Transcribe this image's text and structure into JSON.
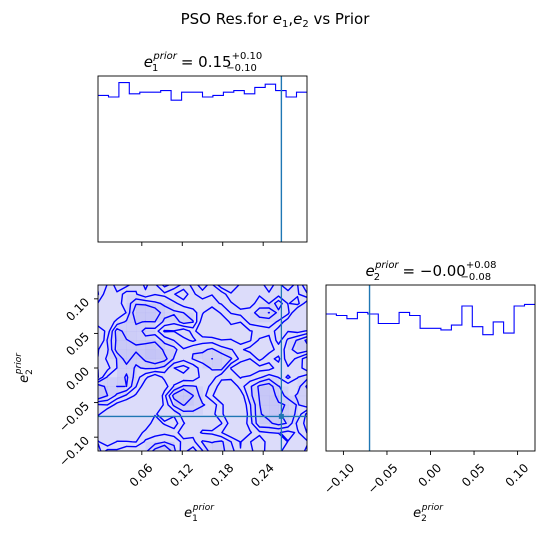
{
  "chart_data": {
    "type": "corner",
    "suptitle": "PSO Res.for e1,e2 vs Prior",
    "suptitle_parts": {
      "prefix": "PSO Res.for ",
      "sym": "e",
      "sub1": "1",
      "comma": ",",
      "sub2": "2",
      "suffix": " vs Prior"
    },
    "panels": [
      {
        "type": "histogram",
        "variable": "e1_prior",
        "title": {
          "sym": "e",
          "sub": "1",
          "sup": "prior",
          "median": "= 0.15",
          "plus": "+0.10",
          "minus": "−0.10"
        },
        "xlim": [
          -0.005,
          0.305
        ],
        "bin_edges": [
          -0.005,
          0.0105,
          0.026,
          0.0415,
          0.057,
          0.0725,
          0.088,
          0.1035,
          0.119,
          0.1345,
          0.15,
          0.1655,
          0.181,
          0.1965,
          0.212,
          0.2275,
          0.243,
          0.2585,
          0.274,
          0.2895,
          0.305
        ],
        "counts": [
          0.92,
          0.91,
          1.0,
          0.93,
          0.94,
          0.94,
          0.95,
          0.89,
          0.94,
          0.94,
          0.91,
          0.92,
          0.94,
          0.95,
          0.93,
          0.97,
          0.99,
          0.95,
          0.91,
          0.94
        ],
        "marker_x": 0.267,
        "tick_values": [
          0.06,
          0.12,
          0.18,
          0.24
        ]
      },
      {
        "type": "contour",
        "variables": [
          "e1_prior",
          "e2_prior"
        ],
        "xlim": [
          -0.005,
          0.305
        ],
        "ylim": [
          -0.12,
          0.12
        ],
        "x_ticks": [
          "0.06",
          "0.12",
          "0.18",
          "0.24"
        ],
        "x_tick_values": [
          0.06,
          0.12,
          0.18,
          0.24
        ],
        "y_ticks": [
          "−0.10",
          "−0.05",
          "0.00",
          "0.05",
          "0.10"
        ],
        "y_tick_values": [
          -0.1,
          -0.05,
          0.0,
          0.05,
          0.1
        ],
        "xlabel": {
          "sym": "e",
          "sub": "1",
          "sup": "prior"
        },
        "ylabel": {
          "sym": "e",
          "sub": "2",
          "sup": "prior"
        },
        "marker_x": 0.267,
        "marker_y": -0.07
      },
      {
        "type": "histogram",
        "variable": "e2_prior",
        "title": {
          "sym": "e",
          "sub": "2",
          "sup": "prior",
          "median": "= −0.00",
          "plus": "+0.08",
          "minus": "−0.08"
        },
        "xlim": [
          -0.12,
          0.12
        ],
        "bin_edges": [
          -0.12,
          -0.108,
          -0.096,
          -0.084,
          -0.072,
          -0.06,
          -0.048,
          -0.036,
          -0.024,
          -0.012,
          0.0,
          0.012,
          0.024,
          0.036,
          0.048,
          0.06,
          0.072,
          0.084,
          0.096,
          0.108,
          0.12
        ],
        "counts": [
          0.86,
          0.85,
          0.83,
          0.87,
          0.86,
          0.8,
          0.8,
          0.87,
          0.85,
          0.77,
          0.77,
          0.76,
          0.79,
          0.91,
          0.78,
          0.73,
          0.81,
          0.74,
          0.91,
          0.92
        ],
        "marker_x": -0.07,
        "x_ticks": [
          "−0.10",
          "−0.05",
          "0.00",
          "0.05",
          "0.10"
        ],
        "x_tick_values": [
          -0.1,
          -0.05,
          0.0,
          0.05,
          0.1
        ],
        "xlabel": {
          "sym": "e",
          "sub": "2",
          "sup": "prior"
        }
      }
    ],
    "colors": {
      "hist": "#0000ff",
      "contour": "#0000ff",
      "fill": "#dcdcfa",
      "marker": "#1f77b4"
    }
  }
}
